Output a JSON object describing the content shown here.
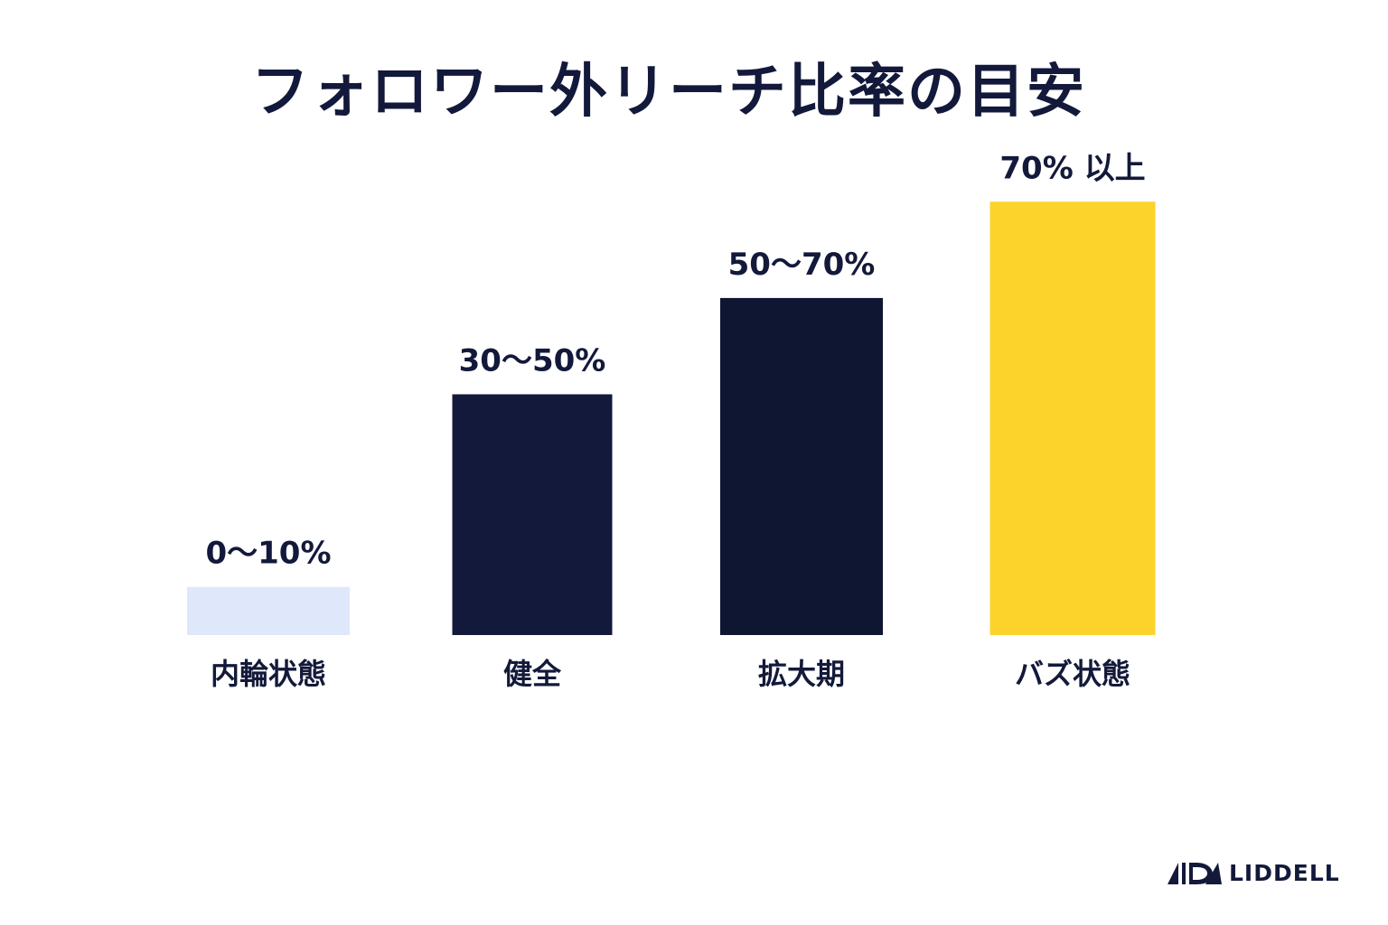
{
  "chart_data": {
    "type": "bar",
    "title": "フォロワー外リーチ比率の目安",
    "categories": [
      "内輪状態",
      "健全",
      "拡大期",
      "バズ状態"
    ],
    "data_labels": [
      "0〜10%",
      "30〜50%",
      "50〜70%",
      "70% 以上"
    ],
    "values": [
      10,
      50,
      70,
      90
    ],
    "colors": [
      "#dfe8fb",
      "#13193a",
      "#0f1631",
      "#fcd32a"
    ],
    "ylim": [
      0,
      100
    ],
    "grid": false,
    "legend": "none"
  },
  "logo": {
    "text": "LIDDELL",
    "icon": "liddell-logo-mark-icon"
  }
}
